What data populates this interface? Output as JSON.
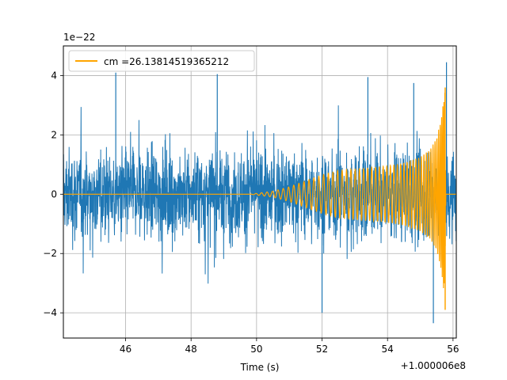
{
  "chart_data": {
    "type": "line",
    "title": "",
    "xlabel": "Time (s)",
    "ylabel": "",
    "x_offset_label": "+1.000006e8",
    "y_scale_label": "1e−22",
    "xlim": [
      44.1,
      56.1
    ],
    "ylim": [
      -4.85,
      5.0
    ],
    "xticks": [
      46,
      48,
      50,
      52,
      54,
      56
    ],
    "xtick_labels": [
      "46",
      "48",
      "50",
      "52",
      "54",
      "56"
    ],
    "yticks": [
      -4,
      -2,
      0,
      2,
      4
    ],
    "ytick_labels": [
      "−4",
      "−2",
      "0",
      "2",
      "4"
    ],
    "grid": true,
    "legend_position": "top-left",
    "series": [
      {
        "name": "",
        "color": "#1f77b4",
        "description_values": {
          "x_range": [
            44.1,
            56.1
          ],
          "typical_amplitude": 1.9,
          "peak_values": [
            4.1,
            4.05,
            3.95,
            3.75,
            -4.0,
            -4.35,
            4.45
          ]
        }
      },
      {
        "name": "cm =26.13814519365212",
        "color": "#ffa500",
        "x": [
          44.1,
          49.8,
          50.5,
          51.0,
          51.5,
          52.0,
          52.5,
          53.0,
          53.5,
          54.0,
          54.5,
          55.0,
          55.3,
          55.5,
          55.65,
          55.75,
          55.78,
          56.1
        ],
        "envelope": [
          0,
          0,
          0.1,
          0.25,
          0.45,
          0.65,
          0.8,
          0.85,
          0.9,
          0.95,
          1.05,
          1.25,
          1.5,
          1.9,
          2.6,
          3.6,
          0,
          0
        ]
      }
    ]
  }
}
